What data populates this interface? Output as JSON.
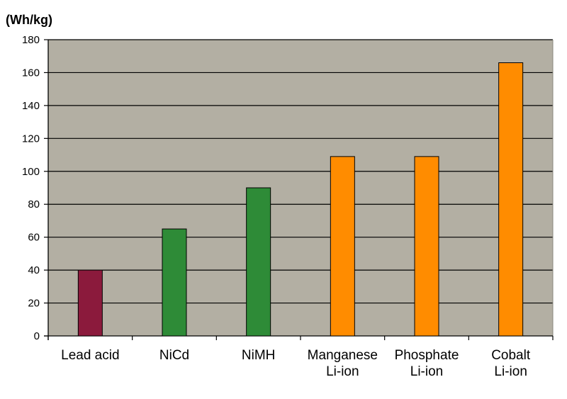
{
  "chart_data": {
    "type": "bar",
    "ylabel": "(Wh/kg)",
    "ylim": [
      0,
      180
    ],
    "yticks": [
      "0",
      "20",
      "40",
      "60",
      "80",
      "100",
      "120",
      "140",
      "160",
      "180"
    ],
    "grid": true,
    "categories": [
      [
        "Lead acid"
      ],
      [
        "NiCd"
      ],
      [
        "NiMH"
      ],
      [
        "Manganese",
        "Li-ion"
      ],
      [
        "Phosphate",
        "Li-ion"
      ],
      [
        "Cobalt",
        "Li-ion"
      ]
    ],
    "values": [
      40,
      65,
      90,
      109,
      109,
      166
    ],
    "bar_colors": [
      "#8b1a3c",
      "#2e8b37",
      "#2e8b37",
      "#ff8c00",
      "#ff8c00",
      "#ff8c00"
    ],
    "plot_background": "#b3afa3"
  }
}
